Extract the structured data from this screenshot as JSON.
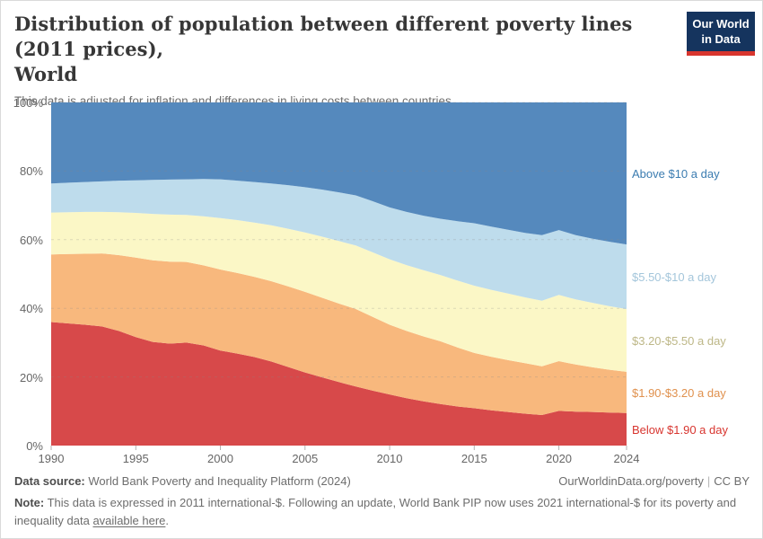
{
  "header": {
    "title_lines": [
      "Distribution of population between different poverty lines (2011 prices),",
      "World"
    ],
    "subtitle": "This data is adjusted for inflation and differences in living costs between countries.",
    "logo": {
      "line1": "Our World",
      "line2": "in Data",
      "bg_color": "#15345e",
      "bar_color": "#d8352e"
    }
  },
  "chart_data": {
    "type": "area",
    "stacked": true,
    "title": "Distribution of population between different poverty lines (2011 prices), World",
    "xlabel": "",
    "ylabel": "",
    "ylim": [
      0,
      100
    ],
    "grid": "dashed-horizontal",
    "legend_position": "right-of-plot",
    "x": [
      1990,
      1991,
      1992,
      1993,
      1994,
      1995,
      1996,
      1997,
      1998,
      1999,
      2000,
      2001,
      2002,
      2003,
      2004,
      2005,
      2006,
      2007,
      2008,
      2009,
      2010,
      2011,
      2012,
      2013,
      2014,
      2015,
      2016,
      2017,
      2018,
      2019,
      2020,
      2021,
      2022,
      2023,
      2024
    ],
    "x_ticks": [
      1990,
      1995,
      2000,
      2005,
      2010,
      2015,
      2020,
      2024
    ],
    "y_ticks": [
      {
        "value": 0,
        "label": "0%"
      },
      {
        "value": 20,
        "label": "20%"
      },
      {
        "value": 40,
        "label": "40%"
      },
      {
        "value": 60,
        "label": "60%"
      },
      {
        "value": 80,
        "label": "80%"
      },
      {
        "value": 100,
        "label": "100%"
      }
    ],
    "series": [
      {
        "name": "Below $1.90 a day",
        "color": "#d7494a",
        "label_color": "#d8352f",
        "values": [
          36.0,
          35.6,
          35.2,
          34.7,
          33.4,
          31.6,
          30.2,
          29.7,
          30.0,
          29.2,
          27.7,
          26.8,
          25.8,
          24.5,
          22.9,
          21.3,
          19.9,
          18.5,
          17.2,
          16.0,
          14.9,
          13.8,
          12.9,
          12.1,
          11.4,
          10.9,
          10.3,
          9.8,
          9.3,
          8.9,
          10.1,
          9.9,
          9.8,
          9.6,
          9.5
        ]
      },
      {
        "name": "$1.90-$3.20 a day",
        "color": "#f8b87d",
        "label_color": "#e0914e",
        "values": [
          19.7,
          20.2,
          20.7,
          21.3,
          22.1,
          23.2,
          23.8,
          23.9,
          23.5,
          23.3,
          23.6,
          23.5,
          23.4,
          23.4,
          23.5,
          23.5,
          23.2,
          22.9,
          22.6,
          21.5,
          20.3,
          19.6,
          18.9,
          18.3,
          17.2,
          16.1,
          15.6,
          15.1,
          14.7,
          14.2,
          14.5,
          13.7,
          13.0,
          12.5,
          12.0
        ]
      },
      {
        "name": "$3.20-$5.50 a day",
        "color": "#fbf7c6",
        "label_color": "#bdb787",
        "values": [
          12.2,
          12.2,
          12.2,
          12.1,
          12.5,
          13.0,
          13.5,
          13.7,
          13.7,
          14.3,
          15.0,
          15.4,
          15.8,
          16.3,
          16.8,
          17.3,
          17.8,
          18.2,
          18.5,
          18.8,
          19.1,
          19.2,
          19.3,
          19.3,
          19.5,
          19.6,
          19.5,
          19.4,
          19.2,
          19.1,
          19.3,
          19.0,
          18.8,
          18.5,
          18.3
        ]
      },
      {
        "name": "$5.50-$10 a day",
        "color": "#bedcec",
        "label_color": "#a4c6db",
        "values": [
          8.5,
          8.6,
          8.7,
          8.9,
          9.2,
          9.5,
          9.9,
          10.2,
          10.4,
          10.9,
          11.3,
          11.5,
          11.8,
          12.2,
          12.7,
          13.2,
          13.7,
          14.2,
          14.6,
          14.9,
          15.1,
          15.5,
          15.9,
          16.4,
          17.3,
          18.2,
          18.4,
          18.6,
          18.8,
          19.1,
          18.9,
          18.7,
          18.7,
          18.8,
          18.8
        ]
      },
      {
        "name": "Above $10 a day",
        "color": "#5589bd",
        "label_color": "#3b7cb0",
        "values": [
          23.6,
          23.4,
          23.2,
          23.0,
          22.8,
          22.7,
          22.6,
          22.5,
          22.4,
          22.3,
          22.4,
          22.8,
          23.2,
          23.6,
          24.1,
          24.7,
          25.4,
          26.2,
          27.1,
          28.8,
          30.6,
          31.9,
          33.0,
          33.9,
          34.6,
          35.2,
          36.2,
          37.1,
          38.0,
          38.7,
          37.2,
          38.7,
          39.7,
          40.6,
          41.4
        ]
      }
    ]
  },
  "footer": {
    "source_label": "Data source:",
    "source_value": " World Bank Poverty and Inequality Platform (2024)",
    "credit_url": "OurWorldinData.org/poverty",
    "credit_sep": "|",
    "credit_license": "CC BY",
    "note_label": "Note:",
    "note_before_link": " This data is expressed in 2011 international-$. Following an update, World Bank PIP now uses 2021 international-$ for its poverty and inequality data ",
    "note_link": "available here",
    "note_after_link": "."
  }
}
